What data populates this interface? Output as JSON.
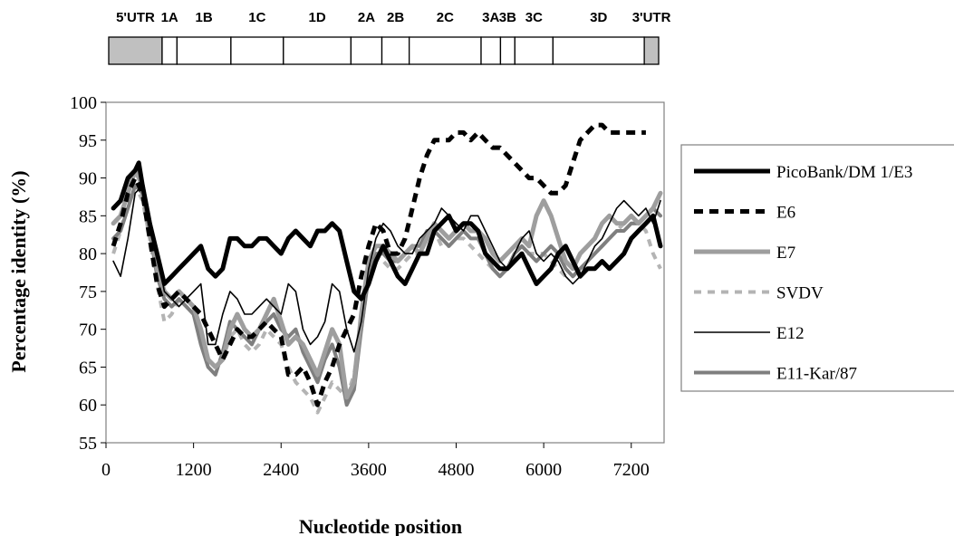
{
  "genome_map": {
    "regions": [
      {
        "label": "5'UTR",
        "start": 0,
        "end": 743,
        "shaded": true
      },
      {
        "label": "1A",
        "start": 743,
        "end": 950,
        "shaded": false
      },
      {
        "label": "1B",
        "start": 950,
        "end": 1700,
        "shaded": false
      },
      {
        "label": "1C",
        "start": 1700,
        "end": 2430,
        "shaded": false
      },
      {
        "label": "1D",
        "start": 2430,
        "end": 3370,
        "shaded": false
      },
      {
        "label": "2A",
        "start": 3370,
        "end": 3800,
        "shaded": false
      },
      {
        "label": "2B",
        "start": 3800,
        "end": 4180,
        "shaded": false
      },
      {
        "label": "2C",
        "start": 4180,
        "end": 5180,
        "shaded": false
      },
      {
        "label": "3A",
        "start": 5180,
        "end": 5450,
        "shaded": false
      },
      {
        "label": "3B",
        "start": 5450,
        "end": 5650,
        "shaded": false
      },
      {
        "label": "3C",
        "start": 5650,
        "end": 6180,
        "shaded": false
      },
      {
        "label": "3D",
        "start": 6180,
        "end": 7450,
        "shaded": false
      },
      {
        "label": "3'UTR",
        "start": 7450,
        "end": 7650,
        "shaded": true
      }
    ]
  },
  "chart_data": {
    "type": "line",
    "xlabel": "Nucleotide position",
    "ylabel": "Percentage identity (%)",
    "xlim": [
      0,
      7650
    ],
    "ylim": [
      55,
      100
    ],
    "xticks": [
      0,
      1200,
      2400,
      3600,
      4800,
      6000,
      7200
    ],
    "yticks": [
      55,
      60,
      65,
      70,
      75,
      80,
      85,
      90,
      95,
      100
    ],
    "grid": false,
    "legend_position": "right",
    "series": [
      {
        "name": "PicoBank/DM 1/E3",
        "color": "#000000",
        "stroke_width": 5,
        "dash": "",
        "x": [
          100,
          200,
          300,
          400,
          450,
          500,
          600,
          700,
          800,
          900,
          1000,
          1100,
          1200,
          1300,
          1400,
          1500,
          1600,
          1700,
          1800,
          1900,
          2000,
          2100,
          2200,
          2300,
          2400,
          2500,
          2600,
          2700,
          2800,
          2900,
          3000,
          3100,
          3200,
          3300,
          3400,
          3500,
          3600,
          3700,
          3800,
          3900,
          4000,
          4100,
          4200,
          4300,
          4400,
          4500,
          4600,
          4700,
          4800,
          4900,
          5000,
          5100,
          5200,
          5300,
          5400,
          5500,
          5600,
          5700,
          5800,
          5900,
          6000,
          6100,
          6200,
          6300,
          6400,
          6500,
          6600,
          6700,
          6800,
          6900,
          7000,
          7100,
          7200,
          7300,
          7400,
          7500,
          7600
        ],
        "y": [
          86,
          87,
          90,
          91,
          92,
          89,
          84,
          80,
          76,
          77,
          78,
          79,
          80,
          81,
          78,
          77,
          78,
          82,
          82,
          81,
          81,
          82,
          82,
          81,
          80,
          82,
          83,
          82,
          81,
          83,
          83,
          84,
          83,
          79,
          75,
          74,
          76,
          79,
          81,
          79,
          77,
          76,
          78,
          80,
          80,
          83,
          84,
          85,
          83,
          84,
          84,
          83,
          80,
          79,
          78,
          78,
          79,
          80,
          78,
          76,
          77,
          78,
          80,
          81,
          79,
          77,
          78,
          78,
          79,
          78,
          79,
          80,
          82,
          83,
          84,
          85,
          81
        ]
      },
      {
        "name": "E6",
        "color": "#000000",
        "stroke_width": 5,
        "dash": "10,7",
        "x": [
          100,
          200,
          300,
          400,
          500,
          600,
          700,
          800,
          900,
          1000,
          1100,
          1200,
          1300,
          1400,
          1500,
          1600,
          1700,
          1800,
          1900,
          2000,
          2100,
          2200,
          2300,
          2400,
          2500,
          2600,
          2700,
          2800,
          2900,
          3000,
          3100,
          3200,
          3300,
          3400,
          3500,
          3600,
          3700,
          3800,
          3900,
          4000,
          4100,
          4200,
          4300,
          4400,
          4500,
          4600,
          4700,
          4800,
          4900,
          5000,
          5100,
          5200,
          5300,
          5400,
          5500,
          5600,
          5700,
          5800,
          5900,
          6000,
          6100,
          6200,
          6300,
          6400,
          6500,
          6600,
          6700,
          6800,
          6900,
          7000,
          7100,
          7200,
          7300,
          7400
        ],
        "y": [
          81,
          84,
          88,
          90,
          88,
          82,
          76,
          73,
          74,
          75,
          74,
          73,
          72,
          70,
          68,
          66,
          68,
          70,
          69,
          69,
          70,
          71,
          70,
          69,
          64,
          64,
          65,
          63,
          60,
          63,
          65,
          68,
          70,
          72,
          77,
          81,
          84,
          83,
          80,
          80,
          82,
          86,
          90,
          93,
          95,
          95,
          95,
          96,
          96,
          95,
          96,
          95,
          94,
          94,
          93,
          92,
          91,
          90,
          90,
          89,
          88,
          88,
          89,
          92,
          95,
          96,
          97,
          97,
          96,
          96,
          96,
          96,
          96,
          96
        ]
      },
      {
        "name": "E7",
        "color": "#9e9e9e",
        "stroke_width": 5,
        "dash": "",
        "x": [
          100,
          200,
          300,
          400,
          500,
          600,
          700,
          800,
          900,
          1000,
          1100,
          1200,
          1300,
          1400,
          1500,
          1600,
          1700,
          1800,
          1900,
          2000,
          2100,
          2200,
          2300,
          2400,
          2500,
          2600,
          2700,
          2800,
          2900,
          3000,
          3100,
          3200,
          3300,
          3400,
          3500,
          3600,
          3700,
          3800,
          3900,
          4000,
          4100,
          4200,
          4300,
          4400,
          4500,
          4600,
          4700,
          4800,
          4900,
          5000,
          5100,
          5200,
          5300,
          5400,
          5500,
          5600,
          5700,
          5800,
          5900,
          6000,
          6100,
          6200,
          6300,
          6400,
          6500,
          6600,
          6700,
          6800,
          6900,
          7000,
          7100,
          7200,
          7300,
          7400,
          7500,
          7600
        ],
        "y": [
          84,
          85,
          88,
          91,
          89,
          84,
          78,
          75,
          74,
          75,
          74,
          73,
          70,
          66,
          65,
          66,
          70,
          72,
          70,
          69,
          70,
          72,
          74,
          71,
          68,
          69,
          68,
          66,
          64,
          67,
          70,
          68,
          61,
          63,
          72,
          79,
          81,
          81,
          80,
          79,
          80,
          81,
          80,
          82,
          84,
          83,
          82,
          83,
          84,
          83,
          83,
          82,
          80,
          79,
          80,
          81,
          82,
          81,
          85,
          87,
          85,
          82,
          79,
          78,
          80,
          81,
          82,
          84,
          85,
          84,
          84,
          85,
          84,
          85,
          86,
          88
        ]
      },
      {
        "name": "SVDV",
        "color": "#b4b4b4",
        "stroke_width": 4,
        "dash": "8,7",
        "x": [
          100,
          200,
          300,
          400,
          500,
          600,
          700,
          800,
          900,
          1000,
          1100,
          1200,
          1300,
          1400,
          1500,
          1600,
          1700,
          1800,
          1900,
          2000,
          2100,
          2200,
          2300,
          2400,
          2500,
          2600,
          2700,
          2800,
          2900,
          3000,
          3100,
          3200,
          3300,
          3400,
          3500,
          3600,
          3700,
          3800,
          3900,
          4000,
          4100,
          4200,
          4300,
          4400,
          4500,
          4600,
          4700,
          4800,
          4900,
          5000,
          5100,
          5200,
          5300,
          5400,
          5500,
          5600,
          5700,
          5800,
          5900,
          6000,
          6100,
          6200,
          6300,
          6400,
          6500,
          6600,
          6700,
          6800,
          6900,
          7000,
          7100,
          7200,
          7300,
          7400,
          7500,
          7600
        ],
        "y": [
          80,
          83,
          87,
          89,
          87,
          82,
          76,
          71,
          72,
          74,
          73,
          72,
          69,
          66,
          65,
          66,
          69,
          70,
          68,
          67,
          68,
          70,
          69,
          68,
          65,
          63,
          62,
          61,
          59,
          61,
          63,
          62,
          61,
          64,
          70,
          77,
          79,
          79,
          78,
          78,
          79,
          80,
          80,
          82,
          83,
          81,
          81,
          82,
          82,
          81,
          80,
          79,
          78,
          77,
          78,
          79,
          80,
          80,
          80,
          80,
          79,
          78,
          77,
          77,
          78,
          79,
          80,
          81,
          82,
          83,
          84,
          84,
          84,
          83,
          80,
          78
        ]
      },
      {
        "name": "E12",
        "color": "#000000",
        "stroke_width": 1.6,
        "dash": "",
        "x": [
          100,
          200,
          300,
          400,
          500,
          600,
          700,
          800,
          900,
          1000,
          1100,
          1200,
          1300,
          1400,
          1500,
          1600,
          1700,
          1800,
          1900,
          2000,
          2100,
          2200,
          2300,
          2400,
          2500,
          2600,
          2700,
          2800,
          2900,
          3000,
          3100,
          3200,
          3300,
          3400,
          3500,
          3600,
          3700,
          3800,
          3900,
          4000,
          4100,
          4200,
          4300,
          4400,
          4500,
          4600,
          4700,
          4800,
          4900,
          5000,
          5100,
          5200,
          5300,
          5400,
          5500,
          5600,
          5700,
          5800,
          5900,
          6000,
          6100,
          6200,
          6300,
          6400,
          6500,
          6600,
          6700,
          6800,
          6900,
          7000,
          7100,
          7200,
          7300,
          7400,
          7500,
          7600
        ],
        "y": [
          79,
          77,
          82,
          88,
          89,
          84,
          80,
          75,
          74,
          73,
          74,
          75,
          76,
          68,
          68,
          72,
          75,
          74,
          72,
          72,
          73,
          74,
          73,
          72,
          76,
          75,
          70,
          68,
          69,
          71,
          76,
          75,
          70,
          67,
          71,
          78,
          82,
          84,
          83,
          81,
          80,
          80,
          82,
          83,
          84,
          86,
          85,
          84,
          83,
          85,
          85,
          83,
          81,
          79,
          78,
          80,
          82,
          83,
          80,
          79,
          80,
          79,
          77,
          76,
          77,
          79,
          81,
          82,
          84,
          86,
          87,
          86,
          85,
          86,
          84,
          87
        ]
      },
      {
        "name": "E11-Kar/87",
        "color": "#7f7f7f",
        "stroke_width": 4,
        "dash": "",
        "x": [
          100,
          200,
          300,
          400,
          500,
          600,
          700,
          800,
          900,
          1000,
          1100,
          1200,
          1300,
          1400,
          1500,
          1600,
          1700,
          1800,
          1900,
          2000,
          2100,
          2200,
          2300,
          2400,
          2500,
          2600,
          2700,
          2800,
          2900,
          3000,
          3100,
          3200,
          3300,
          3400,
          3500,
          3600,
          3700,
          3800,
          3900,
          4000,
          4100,
          4200,
          4300,
          4400,
          4500,
          4600,
          4700,
          4800,
          4900,
          5000,
          5100,
          5200,
          5300,
          5400,
          5500,
          5600,
          5700,
          5800,
          5900,
          6000,
          6100,
          6200,
          6300,
          6400,
          6500,
          6600,
          6700,
          6800,
          6900,
          7000,
          7100,
          7200,
          7300,
          7400,
          7500,
          7600
        ],
        "y": [
          82,
          83,
          86,
          89,
          88,
          83,
          77,
          74,
          73,
          74,
          73,
          72,
          68,
          65,
          64,
          67,
          71,
          70,
          69,
          68,
          70,
          71,
          72,
          70,
          69,
          70,
          67,
          65,
          63,
          66,
          68,
          65,
          60,
          62,
          70,
          77,
          80,
          80,
          79,
          79,
          80,
          81,
          81,
          83,
          83,
          82,
          81,
          82,
          83,
          82,
          82,
          80,
          78,
          77,
          78,
          80,
          81,
          80,
          79,
          80,
          81,
          80,
          78,
          77,
          78,
          79,
          80,
          81,
          82,
          83,
          83,
          84,
          84,
          85,
          86,
          85
        ]
      }
    ]
  }
}
